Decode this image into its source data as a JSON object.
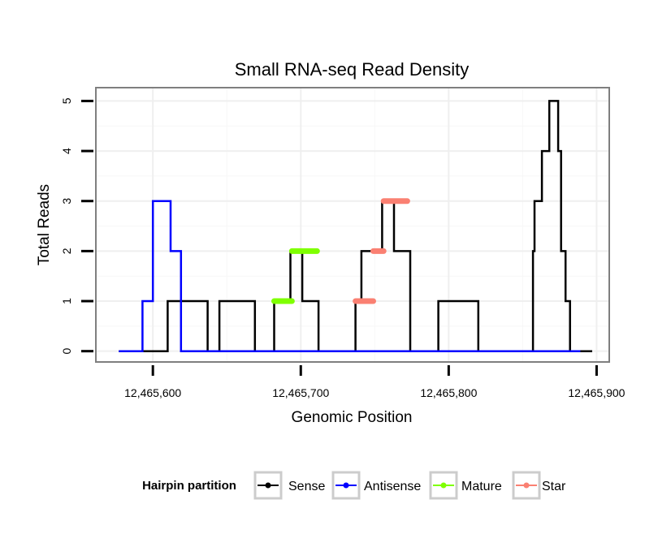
{
  "chart_data": {
    "type": "line",
    "title": "Small RNA-seq Read Density",
    "xlabel": "Genomic Position",
    "ylabel": "Total Reads",
    "xlim": [
      12465562,
      12465908
    ],
    "ylim": [
      -0.2,
      5.25
    ],
    "xticks": [
      12465600,
      12465700,
      12465800,
      12465900
    ],
    "xtick_labels": [
      "12,465,600",
      "12,465,700",
      "12,465,800",
      "12,465,900"
    ],
    "yticks": [
      0,
      1,
      2,
      3,
      4,
      5
    ],
    "ytick_labels": [
      "0",
      "1",
      "2",
      "3",
      "4",
      "5"
    ],
    "grid": true,
    "legend": {
      "title": "Hairpin partition",
      "placement": "bottom",
      "entries": [
        {
          "name": "Sense",
          "color": "#000000"
        },
        {
          "name": "Antisense",
          "color": "#0000ff"
        },
        {
          "name": "Mature",
          "color": "#7fff00"
        },
        {
          "name": "Star",
          "color": "#fa8072"
        }
      ]
    },
    "series": [
      {
        "name": "Sense",
        "color": "#000000",
        "x": [
          12465577,
          12465610,
          12465610,
          12465637,
          12465637,
          12465645,
          12465645,
          12465669,
          12465669,
          12465682,
          12465682,
          12465693,
          12465693,
          12465701,
          12465701,
          12465712,
          12465712,
          12465737,
          12465737,
          12465741,
          12465741,
          12465755,
          12465755,
          12465761,
          12465761,
          12465763,
          12465763,
          12465774,
          12465774,
          12465793,
          12465793,
          12465820,
          12465820,
          12465857,
          12465857,
          12465858,
          12465858,
          12465863,
          12465863,
          12465868,
          12465868,
          12465874,
          12465874,
          12465876,
          12465876,
          12465879,
          12465879,
          12465882,
          12465882,
          12465889,
          12465889,
          12465897
        ],
        "y": [
          0,
          0,
          1,
          1,
          0,
          0,
          1,
          1,
          0,
          0,
          1,
          1,
          2,
          2,
          1,
          1,
          0,
          0,
          1,
          1,
          2,
          2,
          3,
          3,
          3,
          3,
          2,
          2,
          0,
          0,
          1,
          1,
          0,
          0,
          2,
          2,
          3,
          3,
          4,
          4,
          5,
          5,
          4,
          4,
          2,
          2,
          1,
          1,
          0,
          0,
          0,
          0
        ]
      },
      {
        "name": "Antisense",
        "color": "#0000ff",
        "x": [
          12465577,
          12465593,
          12465593,
          12465600,
          12465600,
          12465612,
          12465612,
          12465619,
          12465619,
          12465889
        ],
        "y": [
          0,
          0,
          1,
          1,
          3,
          3,
          2,
          2,
          0,
          0
        ]
      },
      {
        "name": "Mature",
        "color": "#7fff00",
        "segments": [
          {
            "x0": 12465682,
            "x1": 12465694,
            "y": 1
          },
          {
            "x0": 12465694,
            "x1": 12465711,
            "y": 2
          }
        ]
      },
      {
        "name": "Star",
        "color": "#fa8072",
        "segments": [
          {
            "x0": 12465737,
            "x1": 12465749,
            "y": 1
          },
          {
            "x0": 12465749,
            "x1": 12465756,
            "y": 2
          },
          {
            "x0": 12465756,
            "x1": 12465772,
            "y": 3
          }
        ]
      }
    ]
  }
}
